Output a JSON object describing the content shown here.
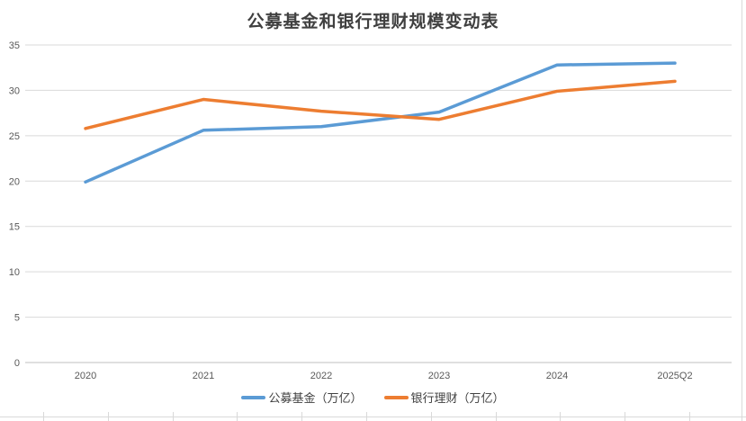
{
  "chart_data": {
    "type": "line",
    "title": "公募基金和银行理财规模变动表",
    "categories": [
      "2020",
      "2021",
      "2022",
      "2023",
      "2024",
      "2025Q2"
    ],
    "series": [
      {
        "name": "公募基金（万亿）",
        "color": "#5B9BD5",
        "values": [
          19.9,
          25.6,
          26.0,
          27.6,
          32.8,
          33.0
        ]
      },
      {
        "name": "银行理财（万亿）",
        "color": "#ED7D31",
        "values": [
          25.8,
          29.0,
          27.7,
          26.8,
          29.9,
          31.0
        ]
      }
    ],
    "xlabel": "",
    "ylabel": "",
    "ylim": [
      0,
      35
    ],
    "yticks": [
      0,
      5,
      10,
      15,
      20,
      25,
      30,
      35
    ],
    "grid": "horizontal",
    "legend_position": "bottom",
    "markers": "none"
  },
  "colors": {
    "background": "#FFFFFF",
    "gridline": "#D9D9D9",
    "axis_line": "#BFBFBF",
    "tick_label": "#595959",
    "title": "#404040",
    "sheet_border": "#D9D9D9"
  }
}
